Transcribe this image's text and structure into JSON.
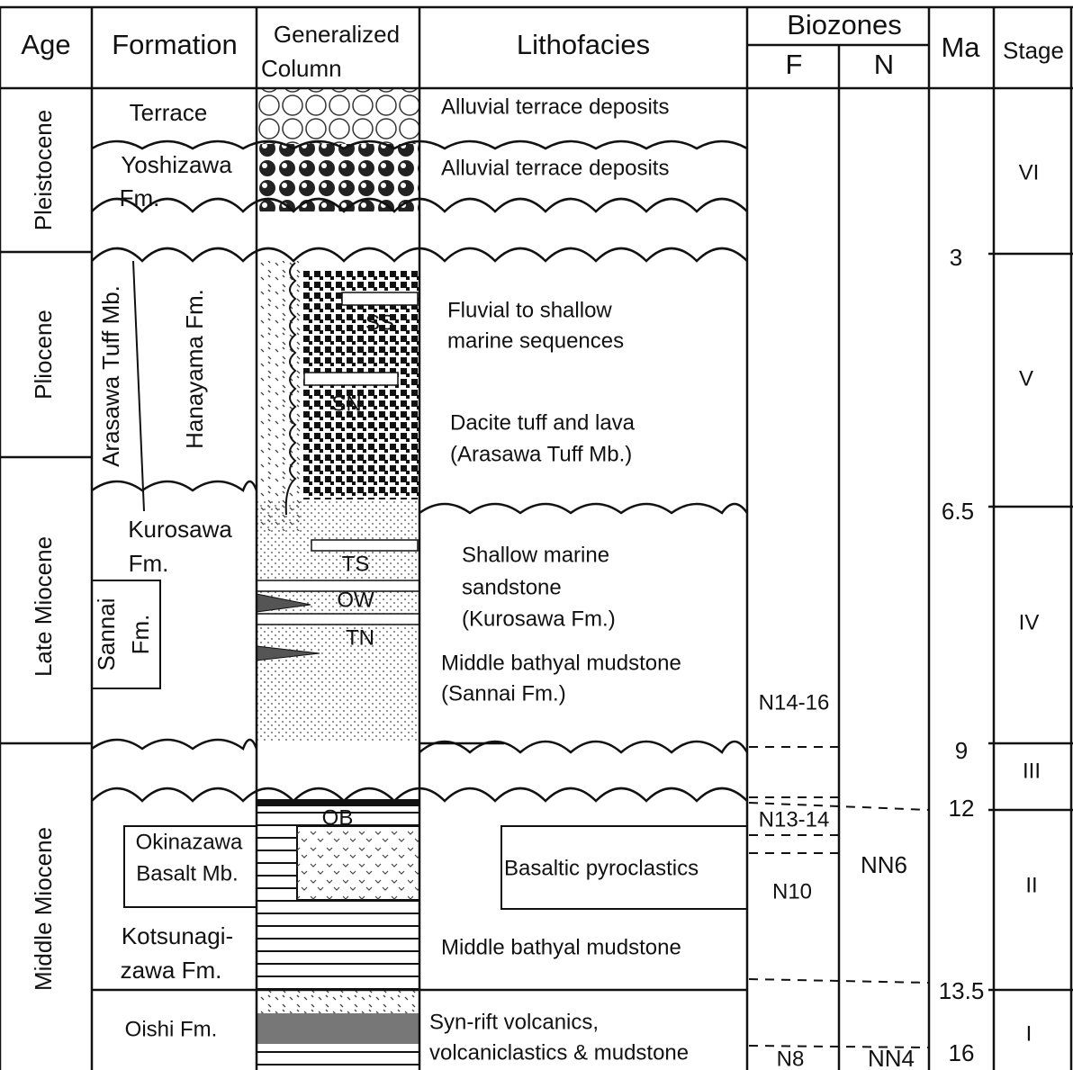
{
  "header": {
    "age": "Age",
    "formation": "Formation",
    "column": [
      "Generalized",
      "Column"
    ],
    "lithofacies": "Lithofacies",
    "biozones": "Biozones",
    "f": "F",
    "n": "N",
    "ma": "Ma",
    "stage": "Stage"
  },
  "ages": [
    "Pleistocene",
    "Pliocene",
    "Late Miocene",
    "Middle Miocene"
  ],
  "formations": {
    "terrace": "Terrace",
    "yoshizawa": [
      "Yoshizawa",
      "Fm."
    ],
    "arasawa": "Arasawa Tuff Mb.",
    "hanayama": "Hanayama Fm.",
    "kurosawa": [
      "Kurosawa",
      "Fm."
    ],
    "sannai": [
      "Sannai",
      "Fm."
    ],
    "okinazawa": [
      "Okinazawa",
      "Basalt Mb."
    ],
    "kotsunagizawa": [
      "Kotsunagi-",
      "zawa Fm."
    ],
    "oishi": "Oishi Fm."
  },
  "column_labels": [
    "SS",
    "SN",
    "TS",
    "OW",
    "TN",
    "OB"
  ],
  "lithofacies": [
    [
      "Alluvial terrace deposits"
    ],
    [
      "Alluvial terrace deposits"
    ],
    [
      "Fluvial to shallow",
      "marine sequences"
    ],
    [
      "Dacite tuff and lava",
      "(Arasawa Tuff Mb.)"
    ],
    [
      "Shallow marine",
      "sandstone",
      "(Kurosawa Fm.)"
    ],
    [
      "Middle bathyal mudstone",
      "(Sannai Fm.)"
    ],
    [
      "Basaltic pyroclastics"
    ],
    [
      "Middle bathyal mudstone"
    ],
    [
      "Syn-rift volcanics,",
      "volcaniclastics & mudstone"
    ]
  ],
  "biozones_f": [
    "N14-16",
    "N13-14",
    "N10",
    "N8"
  ],
  "biozones_n": [
    "NN6",
    "NN4"
  ],
  "ma": [
    3,
    6.5,
    9,
    12,
    13.5,
    16
  ],
  "stages": [
    "VI",
    "V",
    "IV",
    "III",
    "II",
    "I"
  ]
}
